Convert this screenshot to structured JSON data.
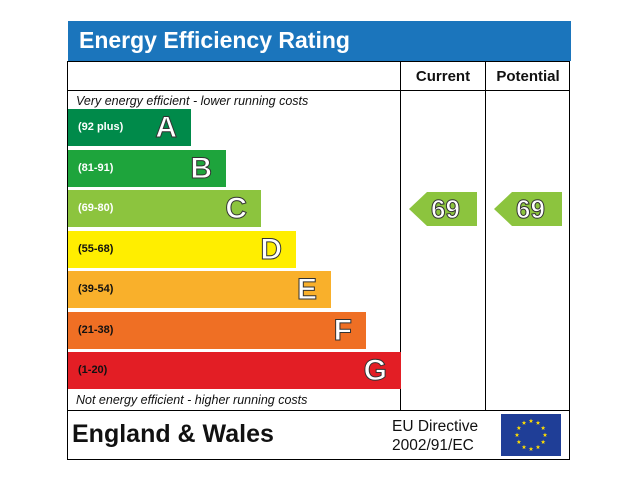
{
  "title": "Energy Efficiency Rating",
  "columns": {
    "current": "Current",
    "potential": "Potential"
  },
  "notes": {
    "top": "Very energy efficient - lower running costs",
    "bottom": "Not energy efficient - higher running costs"
  },
  "chart_data": {
    "type": "bar",
    "title": "Energy Efficiency Rating",
    "categories": [
      "A",
      "B",
      "C",
      "D",
      "E",
      "F",
      "G"
    ],
    "bands": [
      {
        "letter": "A",
        "range": "(92 plus)",
        "min": 92,
        "max": 100,
        "color": "#008a4a"
      },
      {
        "letter": "B",
        "range": "(81-91)",
        "min": 81,
        "max": 91,
        "color": "#1ea43c"
      },
      {
        "letter": "C",
        "range": "(69-80)",
        "min": 69,
        "max": 80,
        "color": "#8cc43e"
      },
      {
        "letter": "D",
        "range": "(55-68)",
        "min": 55,
        "max": 68,
        "color": "#ffee00"
      },
      {
        "letter": "E",
        "range": "(39-54)",
        "min": 39,
        "max": 54,
        "color": "#f9b02b"
      },
      {
        "letter": "F",
        "range": "(21-38)",
        "min": 21,
        "max": 38,
        "color": "#ef6f24"
      },
      {
        "letter": "G",
        "range": "(1-20)",
        "min": 1,
        "max": 20,
        "color": "#e31e25"
      }
    ],
    "current": {
      "value": 69,
      "band": "C",
      "color": "#8cc43e"
    },
    "potential": {
      "value": 69,
      "band": "C",
      "color": "#8cc43e"
    }
  },
  "footer": {
    "country": "England & Wales",
    "directive_line1": "EU Directive",
    "directive_line2": "2002/91/EC",
    "flag_icon": "eu-flag-icon",
    "flag_color": "#1f3e97",
    "star_color": "#ffdd00"
  }
}
